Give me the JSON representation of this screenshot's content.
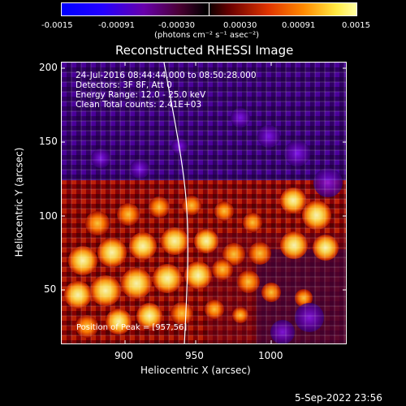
{
  "figure": {
    "colorbar": {
      "ticks": [
        "-0.0015",
        "-0.00091",
        "-0.00030",
        "0.00030",
        "0.00091",
        "0.0015"
      ],
      "title": "(photons cm⁻² s⁻¹ asec⁻²)"
    },
    "title": "Reconstructed RHESSI Image",
    "info_lines": [
      "24-Jul-2016 08:44:44.000 to 08:50:28.000",
      "Detectors: 3F 8F, Att 0",
      "Energy Range: 12.0 - 25.0 keV",
      "Clean     Total counts: 2.41E+03"
    ],
    "peak_label": "Position of Peak = [957,56]",
    "x_axis": {
      "label": "Heliocentric X (arcsec)",
      "ticks": [
        "900",
        "950",
        "1000"
      ]
    },
    "y_axis": {
      "label": "Heliocentric Y (arcsec)",
      "ticks": [
        "50",
        "100",
        "150",
        "200"
      ]
    },
    "timestamp": "5-Sep-2022 23:56"
  },
  "colors": {
    "background": "#000000",
    "low_intensity": "#0000ff",
    "high_intensity": "#ffff80",
    "plot_border": "#ffffff"
  }
}
